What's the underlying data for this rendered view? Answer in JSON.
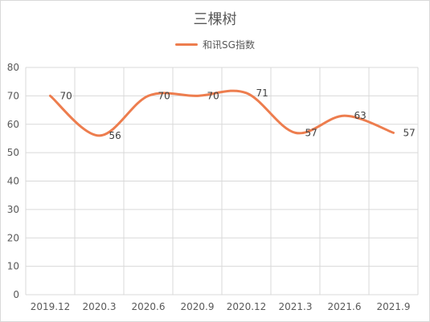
{
  "chart_data": {
    "type": "line",
    "title": "三棵树",
    "categories": [
      "2019.12",
      "2020.3",
      "2020.6",
      "2020.9",
      "2020.12",
      "2021.3",
      "2021.6",
      "2021.9"
    ],
    "series": [
      {
        "name": "和讯SG指数",
        "values": [
          70,
          56,
          70,
          70,
          71,
          57,
          63,
          57
        ]
      }
    ],
    "yticks": [
      "0",
      "10",
      "20",
      "30",
      "40",
      "50",
      "60",
      "70",
      "80"
    ],
    "ylim": [
      0,
      80
    ],
    "grid": true,
    "legend_position": "top",
    "data_labels": [
      "70",
      "56",
      "70",
      "70",
      "71",
      "57",
      "63",
      "57"
    ],
    "line_color": "#ED7D4E"
  }
}
